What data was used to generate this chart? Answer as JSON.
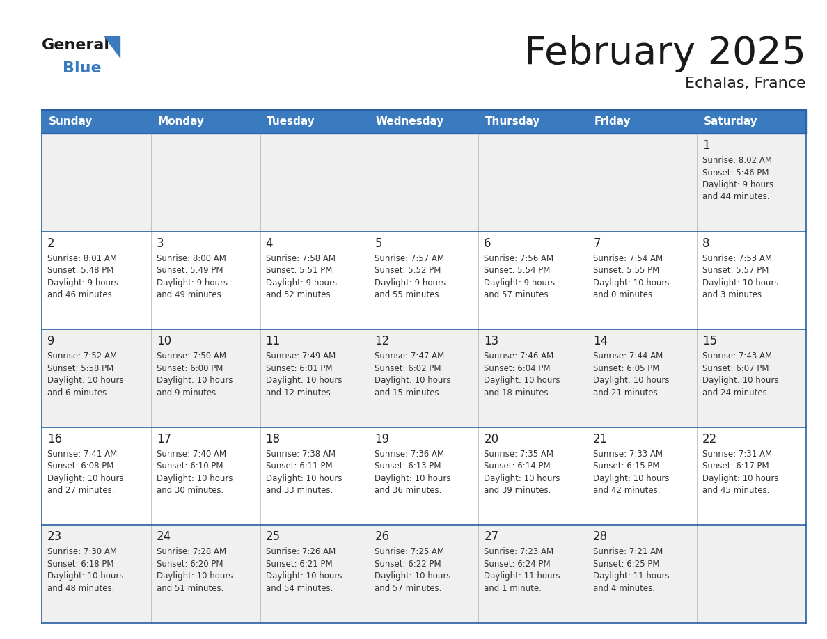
{
  "title": "February 2025",
  "subtitle": "Echalas, France",
  "header_color": "#3a7abf",
  "header_text_color": "#ffffff",
  "border_color": "#2a5fa5",
  "days_of_week": [
    "Sunday",
    "Monday",
    "Tuesday",
    "Wednesday",
    "Thursday",
    "Friday",
    "Saturday"
  ],
  "calendar": [
    [
      null,
      null,
      null,
      null,
      null,
      null,
      {
        "day": 1,
        "sunrise": "8:02 AM",
        "sunset": "5:46 PM",
        "daylight": "9 hours\nand 44 minutes."
      }
    ],
    [
      {
        "day": 2,
        "sunrise": "8:01 AM",
        "sunset": "5:48 PM",
        "daylight": "9 hours\nand 46 minutes."
      },
      {
        "day": 3,
        "sunrise": "8:00 AM",
        "sunset": "5:49 PM",
        "daylight": "9 hours\nand 49 minutes."
      },
      {
        "day": 4,
        "sunrise": "7:58 AM",
        "sunset": "5:51 PM",
        "daylight": "9 hours\nand 52 minutes."
      },
      {
        "day": 5,
        "sunrise": "7:57 AM",
        "sunset": "5:52 PM",
        "daylight": "9 hours\nand 55 minutes."
      },
      {
        "day": 6,
        "sunrise": "7:56 AM",
        "sunset": "5:54 PM",
        "daylight": "9 hours\nand 57 minutes."
      },
      {
        "day": 7,
        "sunrise": "7:54 AM",
        "sunset": "5:55 PM",
        "daylight": "10 hours\nand 0 minutes."
      },
      {
        "day": 8,
        "sunrise": "7:53 AM",
        "sunset": "5:57 PM",
        "daylight": "10 hours\nand 3 minutes."
      }
    ],
    [
      {
        "day": 9,
        "sunrise": "7:52 AM",
        "sunset": "5:58 PM",
        "daylight": "10 hours\nand 6 minutes."
      },
      {
        "day": 10,
        "sunrise": "7:50 AM",
        "sunset": "6:00 PM",
        "daylight": "10 hours\nand 9 minutes."
      },
      {
        "day": 11,
        "sunrise": "7:49 AM",
        "sunset": "6:01 PM",
        "daylight": "10 hours\nand 12 minutes."
      },
      {
        "day": 12,
        "sunrise": "7:47 AM",
        "sunset": "6:02 PM",
        "daylight": "10 hours\nand 15 minutes."
      },
      {
        "day": 13,
        "sunrise": "7:46 AM",
        "sunset": "6:04 PM",
        "daylight": "10 hours\nand 18 minutes."
      },
      {
        "day": 14,
        "sunrise": "7:44 AM",
        "sunset": "6:05 PM",
        "daylight": "10 hours\nand 21 minutes."
      },
      {
        "day": 15,
        "sunrise": "7:43 AM",
        "sunset": "6:07 PM",
        "daylight": "10 hours\nand 24 minutes."
      }
    ],
    [
      {
        "day": 16,
        "sunrise": "7:41 AM",
        "sunset": "6:08 PM",
        "daylight": "10 hours\nand 27 minutes."
      },
      {
        "day": 17,
        "sunrise": "7:40 AM",
        "sunset": "6:10 PM",
        "daylight": "10 hours\nand 30 minutes."
      },
      {
        "day": 18,
        "sunrise": "7:38 AM",
        "sunset": "6:11 PM",
        "daylight": "10 hours\nand 33 minutes."
      },
      {
        "day": 19,
        "sunrise": "7:36 AM",
        "sunset": "6:13 PM",
        "daylight": "10 hours\nand 36 minutes."
      },
      {
        "day": 20,
        "sunrise": "7:35 AM",
        "sunset": "6:14 PM",
        "daylight": "10 hours\nand 39 minutes."
      },
      {
        "day": 21,
        "sunrise": "7:33 AM",
        "sunset": "6:15 PM",
        "daylight": "10 hours\nand 42 minutes."
      },
      {
        "day": 22,
        "sunrise": "7:31 AM",
        "sunset": "6:17 PM",
        "daylight": "10 hours\nand 45 minutes."
      }
    ],
    [
      {
        "day": 23,
        "sunrise": "7:30 AM",
        "sunset": "6:18 PM",
        "daylight": "10 hours\nand 48 minutes."
      },
      {
        "day": 24,
        "sunrise": "7:28 AM",
        "sunset": "6:20 PM",
        "daylight": "10 hours\nand 51 minutes."
      },
      {
        "day": 25,
        "sunrise": "7:26 AM",
        "sunset": "6:21 PM",
        "daylight": "10 hours\nand 54 minutes."
      },
      {
        "day": 26,
        "sunrise": "7:25 AM",
        "sunset": "6:22 PM",
        "daylight": "10 hours\nand 57 minutes."
      },
      {
        "day": 27,
        "sunrise": "7:23 AM",
        "sunset": "6:24 PM",
        "daylight": "11 hours\nand 1 minute."
      },
      {
        "day": 28,
        "sunrise": "7:21 AM",
        "sunset": "6:25 PM",
        "daylight": "11 hours\nand 4 minutes."
      },
      null
    ]
  ]
}
